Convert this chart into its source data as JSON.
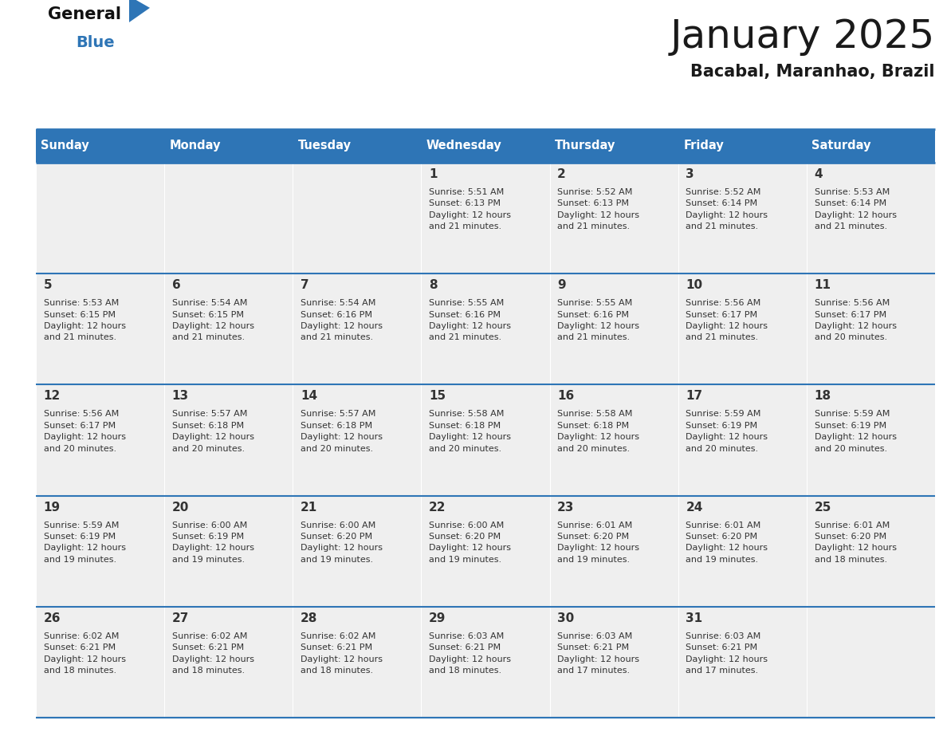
{
  "title": "January 2025",
  "subtitle": "Bacabal, Maranhao, Brazil",
  "header_color": "#2E75B6",
  "header_text_color": "#FFFFFF",
  "cell_bg_color": "#EFEFEF",
  "border_color": "#2E75B6",
  "text_color": "#333333",
  "title_color": "#1a1a1a",
  "days_of_week": [
    "Sunday",
    "Monday",
    "Tuesday",
    "Wednesday",
    "Thursday",
    "Friday",
    "Saturday"
  ],
  "weeks": [
    [
      {
        "day": null,
        "text": ""
      },
      {
        "day": null,
        "text": ""
      },
      {
        "day": null,
        "text": ""
      },
      {
        "day": 1,
        "text": "Sunrise: 5:51 AM\nSunset: 6:13 PM\nDaylight: 12 hours\nand 21 minutes."
      },
      {
        "day": 2,
        "text": "Sunrise: 5:52 AM\nSunset: 6:13 PM\nDaylight: 12 hours\nand 21 minutes."
      },
      {
        "day": 3,
        "text": "Sunrise: 5:52 AM\nSunset: 6:14 PM\nDaylight: 12 hours\nand 21 minutes."
      },
      {
        "day": 4,
        "text": "Sunrise: 5:53 AM\nSunset: 6:14 PM\nDaylight: 12 hours\nand 21 minutes."
      }
    ],
    [
      {
        "day": 5,
        "text": "Sunrise: 5:53 AM\nSunset: 6:15 PM\nDaylight: 12 hours\nand 21 minutes."
      },
      {
        "day": 6,
        "text": "Sunrise: 5:54 AM\nSunset: 6:15 PM\nDaylight: 12 hours\nand 21 minutes."
      },
      {
        "day": 7,
        "text": "Sunrise: 5:54 AM\nSunset: 6:16 PM\nDaylight: 12 hours\nand 21 minutes."
      },
      {
        "day": 8,
        "text": "Sunrise: 5:55 AM\nSunset: 6:16 PM\nDaylight: 12 hours\nand 21 minutes."
      },
      {
        "day": 9,
        "text": "Sunrise: 5:55 AM\nSunset: 6:16 PM\nDaylight: 12 hours\nand 21 minutes."
      },
      {
        "day": 10,
        "text": "Sunrise: 5:56 AM\nSunset: 6:17 PM\nDaylight: 12 hours\nand 21 minutes."
      },
      {
        "day": 11,
        "text": "Sunrise: 5:56 AM\nSunset: 6:17 PM\nDaylight: 12 hours\nand 20 minutes."
      }
    ],
    [
      {
        "day": 12,
        "text": "Sunrise: 5:56 AM\nSunset: 6:17 PM\nDaylight: 12 hours\nand 20 minutes."
      },
      {
        "day": 13,
        "text": "Sunrise: 5:57 AM\nSunset: 6:18 PM\nDaylight: 12 hours\nand 20 minutes."
      },
      {
        "day": 14,
        "text": "Sunrise: 5:57 AM\nSunset: 6:18 PM\nDaylight: 12 hours\nand 20 minutes."
      },
      {
        "day": 15,
        "text": "Sunrise: 5:58 AM\nSunset: 6:18 PM\nDaylight: 12 hours\nand 20 minutes."
      },
      {
        "day": 16,
        "text": "Sunrise: 5:58 AM\nSunset: 6:18 PM\nDaylight: 12 hours\nand 20 minutes."
      },
      {
        "day": 17,
        "text": "Sunrise: 5:59 AM\nSunset: 6:19 PM\nDaylight: 12 hours\nand 20 minutes."
      },
      {
        "day": 18,
        "text": "Sunrise: 5:59 AM\nSunset: 6:19 PM\nDaylight: 12 hours\nand 20 minutes."
      }
    ],
    [
      {
        "day": 19,
        "text": "Sunrise: 5:59 AM\nSunset: 6:19 PM\nDaylight: 12 hours\nand 19 minutes."
      },
      {
        "day": 20,
        "text": "Sunrise: 6:00 AM\nSunset: 6:19 PM\nDaylight: 12 hours\nand 19 minutes."
      },
      {
        "day": 21,
        "text": "Sunrise: 6:00 AM\nSunset: 6:20 PM\nDaylight: 12 hours\nand 19 minutes."
      },
      {
        "day": 22,
        "text": "Sunrise: 6:00 AM\nSunset: 6:20 PM\nDaylight: 12 hours\nand 19 minutes."
      },
      {
        "day": 23,
        "text": "Sunrise: 6:01 AM\nSunset: 6:20 PM\nDaylight: 12 hours\nand 19 minutes."
      },
      {
        "day": 24,
        "text": "Sunrise: 6:01 AM\nSunset: 6:20 PM\nDaylight: 12 hours\nand 19 minutes."
      },
      {
        "day": 25,
        "text": "Sunrise: 6:01 AM\nSunset: 6:20 PM\nDaylight: 12 hours\nand 18 minutes."
      }
    ],
    [
      {
        "day": 26,
        "text": "Sunrise: 6:02 AM\nSunset: 6:21 PM\nDaylight: 12 hours\nand 18 minutes."
      },
      {
        "day": 27,
        "text": "Sunrise: 6:02 AM\nSunset: 6:21 PM\nDaylight: 12 hours\nand 18 minutes."
      },
      {
        "day": 28,
        "text": "Sunrise: 6:02 AM\nSunset: 6:21 PM\nDaylight: 12 hours\nand 18 minutes."
      },
      {
        "day": 29,
        "text": "Sunrise: 6:03 AM\nSunset: 6:21 PM\nDaylight: 12 hours\nand 18 minutes."
      },
      {
        "day": 30,
        "text": "Sunrise: 6:03 AM\nSunset: 6:21 PM\nDaylight: 12 hours\nand 17 minutes."
      },
      {
        "day": 31,
        "text": "Sunrise: 6:03 AM\nSunset: 6:21 PM\nDaylight: 12 hours\nand 17 minutes."
      },
      {
        "day": null,
        "text": ""
      }
    ]
  ],
  "fig_width": 11.88,
  "fig_height": 9.18,
  "dpi": 100
}
